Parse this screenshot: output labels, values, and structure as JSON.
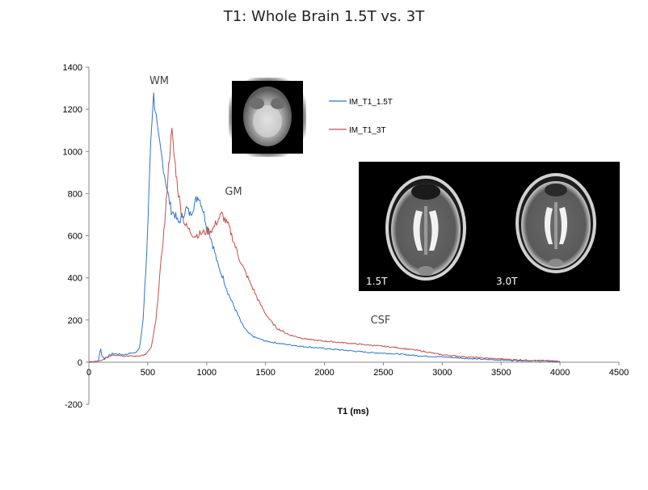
{
  "chart_data": {
    "type": "line",
    "title": "T1: Whole Brain 1.5T vs. 3T",
    "xlabel": "T1 (ms)",
    "ylabel": "",
    "xlim": [
      0,
      4500
    ],
    "ylim": [
      -200,
      1400
    ],
    "xticks": [
      0,
      500,
      1000,
      1500,
      2000,
      2500,
      3000,
      3500,
      4000,
      4500
    ],
    "yticks": [
      -200,
      0,
      200,
      400,
      600,
      800,
      1000,
      1200,
      1400
    ],
    "legend_position": "top-right",
    "series": [
      {
        "name": "IM_T1_1.5T",
        "color": "#2e75c8",
        "points": [
          [
            0,
            0
          ],
          [
            80,
            5
          ],
          [
            100,
            65
          ],
          [
            110,
            30
          ],
          [
            130,
            18
          ],
          [
            200,
            40
          ],
          [
            250,
            38
          ],
          [
            300,
            35
          ],
          [
            350,
            42
          ],
          [
            400,
            45
          ],
          [
            430,
            70
          ],
          [
            460,
            200
          ],
          [
            490,
            500
          ],
          [
            510,
            800
          ],
          [
            525,
            1050
          ],
          [
            540,
            1200
          ],
          [
            550,
            1260
          ],
          [
            565,
            1200
          ],
          [
            585,
            1080
          ],
          [
            610,
            1000
          ],
          [
            640,
            900
          ],
          [
            670,
            800
          ],
          [
            700,
            720
          ],
          [
            730,
            700
          ],
          [
            760,
            660
          ],
          [
            790,
            690
          ],
          [
            830,
            730
          ],
          [
            860,
            700
          ],
          [
            890,
            740
          ],
          [
            910,
            770
          ],
          [
            930,
            790
          ],
          [
            950,
            760
          ],
          [
            970,
            720
          ],
          [
            1000,
            650
          ],
          [
            1030,
            600
          ],
          [
            1060,
            540
          ],
          [
            1100,
            450
          ],
          [
            1140,
            400
          ],
          [
            1180,
            330
          ],
          [
            1220,
            280
          ],
          [
            1260,
            230
          ],
          [
            1300,
            180
          ],
          [
            1350,
            140
          ],
          [
            1400,
            120
          ],
          [
            1500,
            100
          ],
          [
            1600,
            90
          ],
          [
            1800,
            75
          ],
          [
            2000,
            65
          ],
          [
            2200,
            55
          ],
          [
            2400,
            45
          ],
          [
            2600,
            40
          ],
          [
            2800,
            30
          ],
          [
            3000,
            25
          ],
          [
            3200,
            18
          ],
          [
            3400,
            12
          ],
          [
            3600,
            8
          ],
          [
            3800,
            5
          ],
          [
            4000,
            3
          ]
        ]
      },
      {
        "name": "IM_T1_3T",
        "color": "#c0504d",
        "points": [
          [
            0,
            0
          ],
          [
            100,
            5
          ],
          [
            150,
            20
          ],
          [
            200,
            35
          ],
          [
            300,
            30
          ],
          [
            400,
            28
          ],
          [
            480,
            35
          ],
          [
            530,
            70
          ],
          [
            570,
            200
          ],
          [
            600,
            400
          ],
          [
            630,
            580
          ],
          [
            650,
            700
          ],
          [
            670,
            880
          ],
          [
            690,
            1020
          ],
          [
            705,
            1090
          ],
          [
            720,
            1000
          ],
          [
            740,
            900
          ],
          [
            760,
            800
          ],
          [
            790,
            700
          ],
          [
            820,
            650
          ],
          [
            860,
            620
          ],
          [
            900,
            600
          ],
          [
            950,
            610
          ],
          [
            1000,
            620
          ],
          [
            1050,
            630
          ],
          [
            1100,
            680
          ],
          [
            1130,
            700
          ],
          [
            1160,
            670
          ],
          [
            1190,
            640
          ],
          [
            1220,
            590
          ],
          [
            1260,
            520
          ],
          [
            1300,
            460
          ],
          [
            1350,
            400
          ],
          [
            1400,
            340
          ],
          [
            1450,
            280
          ],
          [
            1500,
            230
          ],
          [
            1550,
            190
          ],
          [
            1600,
            160
          ],
          [
            1700,
            130
          ],
          [
            1800,
            115
          ],
          [
            1900,
            105
          ],
          [
            2000,
            100
          ],
          [
            2200,
            90
          ],
          [
            2400,
            80
          ],
          [
            2600,
            70
          ],
          [
            2800,
            55
          ],
          [
            3000,
            35
          ],
          [
            3200,
            25
          ],
          [
            3400,
            18
          ],
          [
            3600,
            12
          ],
          [
            3800,
            8
          ],
          [
            4000,
            5
          ]
        ]
      }
    ],
    "annotations": [
      "WM",
      "GM",
      "CSF"
    ]
  },
  "inset": {
    "label_left": "1.5T",
    "label_right": "3.0T"
  }
}
